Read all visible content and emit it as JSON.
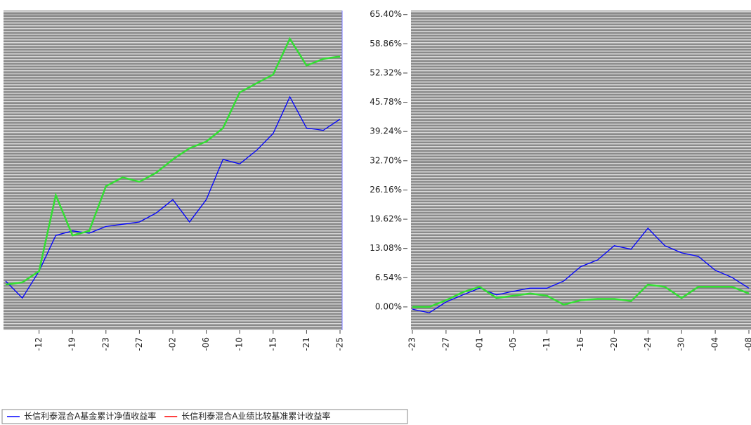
{
  "chart_data": [
    {
      "type": "line",
      "categories": [
        null,
        null,
        "-12",
        null,
        "-19",
        null,
        "-23",
        null,
        "-27",
        null,
        "-02",
        null,
        "-06",
        null,
        "-10",
        null,
        "-15",
        null,
        "-21",
        null,
        "-25"
      ],
      "series": [
        {
          "name": "长信利泰混合A基金累计净值收益率",
          "color": "#0000ff",
          "legend_color": "#0000ff",
          "values": [
            5.8,
            2,
            8,
            16,
            17,
            16.5,
            18,
            18.5,
            19,
            21,
            24,
            19,
            24,
            33,
            32,
            35,
            38.8,
            47,
            40,
            39.5,
            42
          ]
        },
        {
          "name": "长信利泰混合A业绩比较基准累计收益率",
          "color": "#33dd33",
          "legend_color": "#ff0000",
          "values": [
            5,
            5.5,
            8,
            25,
            16,
            17,
            27,
            29,
            28,
            30,
            33,
            35.5,
            37,
            40,
            48,
            50,
            52,
            60,
            54,
            55.5,
            56
          ]
        }
      ],
      "ylim": [
        -5.2,
        66.3
      ],
      "yticks": [
        {
          "value": 0,
          "label": "0.00%"
        },
        {
          "value": 6.54,
          "label": "6.54%"
        },
        {
          "value": 13.08,
          "label": "13.08%"
        },
        {
          "value": 19.62,
          "label": "19.62%"
        },
        {
          "value": 26.16,
          "label": "26.16%"
        },
        {
          "value": 32.7,
          "label": "32.70%"
        },
        {
          "value": 39.24,
          "label": "39.24%"
        },
        {
          "value": 45.78,
          "label": "45.78%"
        },
        {
          "value": 52.32,
          "label": "52.32%"
        },
        {
          "value": 58.86,
          "label": "58.86%"
        },
        {
          "value": 65.4,
          "label": "65.40%"
        }
      ],
      "grid": true
    },
    {
      "type": "line",
      "categories": [
        "-23",
        null,
        "-27",
        null,
        "-01",
        null,
        "-05",
        null,
        "-11",
        null,
        "-16",
        null,
        "-20",
        null,
        "-24",
        null,
        "-30",
        null,
        "-04",
        null,
        "-08"
      ],
      "series": [
        {
          "color": "#0000ff",
          "values": [
            -0.5,
            -1.3,
            1.1,
            2.7,
            4.2,
            2.7,
            3.5,
            4.2,
            4.2,
            5.8,
            9,
            10.5,
            13.7,
            12.9,
            17.6,
            13.7,
            12.1,
            11.3,
            8.2,
            6.6,
            4.2
          ]
        },
        {
          "color": "#33dd33",
          "values": [
            0,
            0,
            1.5,
            3.3,
            4.5,
            2,
            2.5,
            3,
            2.5,
            0.5,
            1.5,
            1.8,
            1.8,
            1.3,
            5,
            4.5,
            2,
            4.5,
            4.5,
            4.5,
            3
          ]
        }
      ],
      "ylim": [
        -5.2,
        66.3
      ],
      "grid": true
    }
  ]
}
